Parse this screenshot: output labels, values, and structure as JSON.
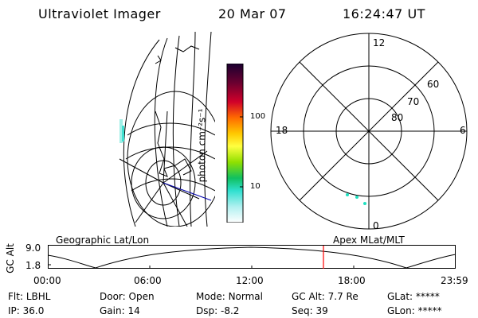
{
  "header": {
    "instrument": "Ultraviolet Imager",
    "date": "20 Mar 07",
    "time": "16:24:47 UT"
  },
  "colorbar": {
    "unit_label": "photon cm⁻²s⁻¹",
    "ticks": [
      "100",
      "10"
    ]
  },
  "polar_plot": {
    "mlt_labels": {
      "top": "12",
      "bottom": "0",
      "left": "18",
      "right": "6"
    },
    "lat_labels": [
      "60",
      "70",
      "80"
    ]
  },
  "orbit_panel": {
    "left_title": "Geographic Lat/Lon",
    "right_title": "Apex MLat/MLT",
    "y_label": "GC Alt",
    "y_ticks": [
      "9.0",
      "1.8"
    ],
    "time_ticks": [
      "00:00",
      "06:00",
      "12:00",
      "18:00",
      "23:59"
    ],
    "marker_color": "#ff0000"
  },
  "status": {
    "row1": [
      {
        "label": "Flt:",
        "value": "LBHL"
      },
      {
        "label": "Door:",
        "value": "Open"
      },
      {
        "label": "Mode:",
        "value": "Normal"
      },
      {
        "label": "GC Alt:",
        "value": "7.7 Re"
      },
      {
        "label": "GLat:",
        "value": "*****"
      }
    ],
    "row2": [
      {
        "label": "IP:",
        "value": "36.0"
      },
      {
        "label": "Gain:",
        "value": "14"
      },
      {
        "label": "Dsp:",
        "value": "-8.2"
      },
      {
        "label": "Seq:",
        "value": "39"
      },
      {
        "label": "GLon:",
        "value": "*****"
      }
    ]
  }
}
